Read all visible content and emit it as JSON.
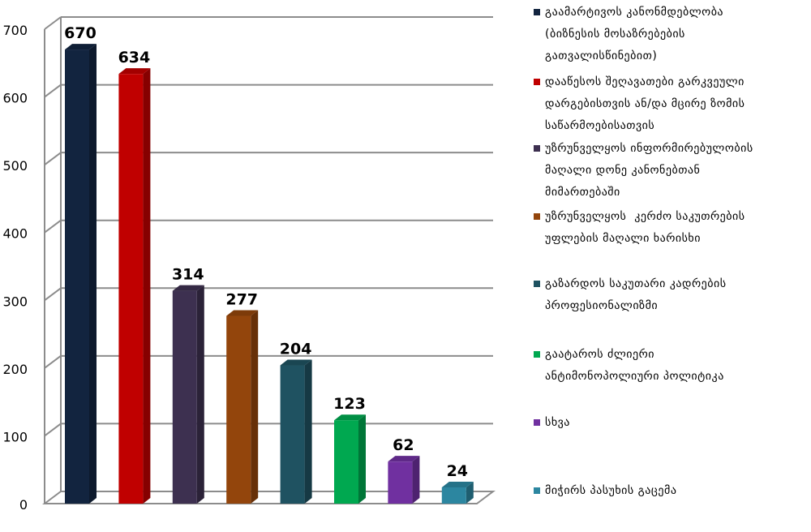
{
  "chart_data": {
    "type": "bar",
    "categories": [
      "გაამარტივოს კანონმდებლობა (ბიზნესის მოსაზრებების გათვალისწინებით)",
      "დააწესოს შეღავათები გარკვეული დარგებისთვის ან/და მცირე ზომის საწარმოებისათვის",
      "უზრუნველყოს ინფორმირებულობის მაღალი დონე კანონებთან მიმართებაში",
      "უზრუნველყოს  კერძო საკუთრების უფლების მაღალი ხარისხი",
      "გაზარდოს საკუთარი კადრების პროფესიონალიზმი",
      "გაატაროს ძლიერი ანტიმონოპოლიური პოლიტიკა",
      "სხვა",
      "მიჭირს პასუხის გაცემა"
    ],
    "values": [
      670,
      634,
      314,
      277,
      204,
      123,
      62,
      24
    ],
    "data_labels": [
      "670",
      "634",
      "314",
      "277",
      "204",
      "123",
      "62",
      "24"
    ],
    "colors": [
      "#12243f",
      "#c00000",
      "#3d3050",
      "#93450c",
      "#1f5261",
      "#00a850",
      "#7030a0",
      "#2c86a0"
    ],
    "yticks": [
      "0",
      "100",
      "200",
      "300",
      "400",
      "500",
      "600",
      "700"
    ],
    "ylim": [
      0,
      700
    ],
    "grid": true,
    "legend_position": "right",
    "title": "",
    "xlabel": "",
    "ylabel": ""
  },
  "legend": {
    "items": [
      {
        "lines": [
          "გაამარტივოს კანონმდებლობა",
          "(ბიზნესის მოსაზრებების",
          "გათვალისწინებით)"
        ]
      },
      {
        "lines": [
          "დააწესოს შეღავათები გარკვეული",
          "დარგებისთვის ან/და მცირე ზომის",
          "საწარმოებისათვის"
        ]
      },
      {
        "lines": [
          "უზრუნველყოს ინფორმირებულობის",
          "მაღალი დონე კანონებთან",
          "მიმართებაში"
        ]
      },
      {
        "lines": [
          "უზრუნველყოს  კერძო საკუთრების",
          "უფლების მაღალი ხარისხი"
        ]
      },
      {
        "lines": [
          "გაზარდოს საკუთარი კადრების",
          "პროფესიონალიზმი"
        ]
      },
      {
        "lines": [
          "გაატაროს ძლიერი",
          "ანტიმონოპოლიური პოლიტიკა"
        ]
      },
      {
        "lines": [
          "სხვა"
        ]
      },
      {
        "lines": [
          "მიჭირს პასუხის გაცემა"
        ]
      }
    ]
  }
}
